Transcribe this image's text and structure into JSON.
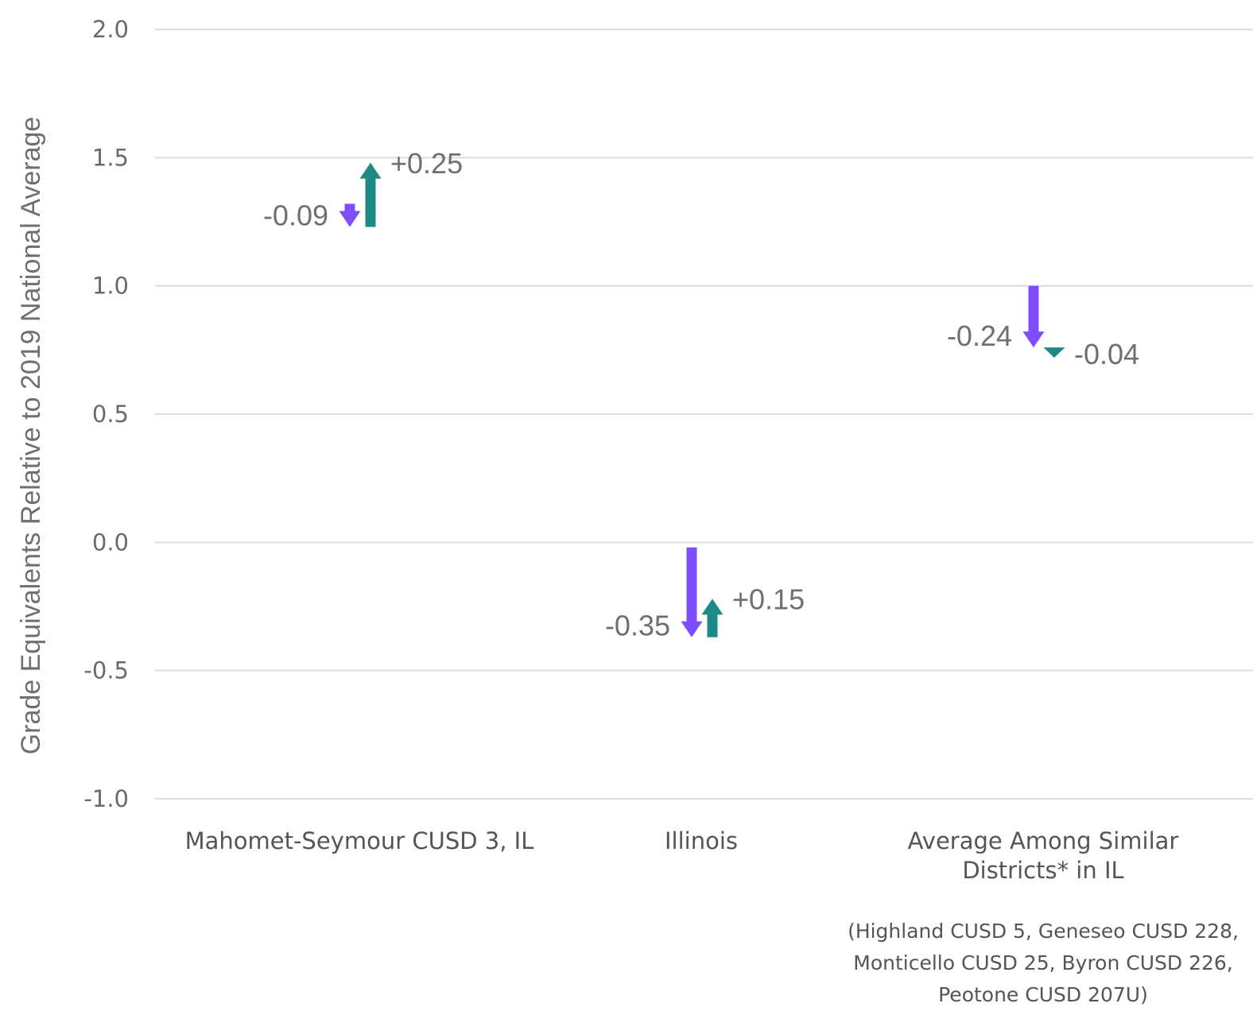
{
  "chart_data": {
    "type": "arrow",
    "ylabel": "Grade Equivalents Relative to 2019 National Average",
    "ylim": [
      -1.0,
      2.0
    ],
    "yticks": [
      2.0,
      1.5,
      1.0,
      0.5,
      0.0,
      -0.5,
      -1.0
    ],
    "ytick_labels": [
      "2.0",
      "1.5",
      "1.0",
      "0.5",
      "0.0",
      "-0.5",
      "-1.0"
    ],
    "grid": true,
    "categories": [
      {
        "name_lines": [
          "Mahomet-Seymour CUSD 3, IL"
        ],
        "note_lines": [],
        "baseline": 1.32,
        "changes": [
          {
            "delta": -0.09,
            "label": "-0.09",
            "color": "#7d4dff"
          },
          {
            "delta": 0.25,
            "label": "+0.25",
            "color": "#1f8a84"
          }
        ]
      },
      {
        "name_lines": [
          "Illinois"
        ],
        "note_lines": [],
        "baseline": -0.02,
        "changes": [
          {
            "delta": -0.35,
            "label": "-0.35",
            "color": "#7d4dff"
          },
          {
            "delta": 0.15,
            "label": "+0.15",
            "color": "#1f8a84"
          }
        ]
      },
      {
        "name_lines": [
          "Average Among Similar",
          "Districts* in IL"
        ],
        "note_lines": [
          "(Highland CUSD 5, Geneseo CUSD 228,",
          "Monticello CUSD 25, Byron CUSD 226,",
          "Peotone CUSD 207U)"
        ],
        "baseline": 1.0,
        "changes": [
          {
            "delta": -0.24,
            "label": "-0.24",
            "color": "#7d4dff"
          },
          {
            "delta": -0.04,
            "label": "-0.04",
            "color": "#1f8a84"
          }
        ]
      }
    ]
  }
}
